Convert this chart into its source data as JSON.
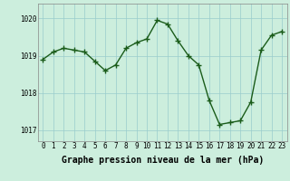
{
  "hours": [
    0,
    1,
    2,
    3,
    4,
    5,
    6,
    7,
    8,
    9,
    10,
    11,
    12,
    13,
    14,
    15,
    16,
    17,
    18,
    19,
    20,
    21,
    22,
    23
  ],
  "pressure": [
    1018.9,
    1019.1,
    1019.2,
    1019.15,
    1019.1,
    1018.85,
    1018.6,
    1018.75,
    1019.2,
    1019.35,
    1019.45,
    1019.95,
    1019.85,
    1019.4,
    1019.0,
    1018.75,
    1017.8,
    1017.15,
    1017.2,
    1017.25,
    1017.75,
    1019.15,
    1019.55,
    1019.65
  ],
  "line_color": "#1a5c1a",
  "marker_color": "#1a5c1a",
  "background_color": "#cceedd",
  "grid_color": "#99cccc",
  "xlabel": "Graphe pression niveau de la mer (hPa)",
  "xlabel_fontsize": 7,
  "ylim": [
    1016.7,
    1020.4
  ],
  "yticks": [
    1017,
    1018,
    1019,
    1020
  ],
  "xticks": [
    0,
    1,
    2,
    3,
    4,
    5,
    6,
    7,
    8,
    9,
    10,
    11,
    12,
    13,
    14,
    15,
    16,
    17,
    18,
    19,
    20,
    21,
    22,
    23
  ],
  "tick_fontsize": 5.5,
  "marker_size": 4,
  "line_width": 1.0
}
